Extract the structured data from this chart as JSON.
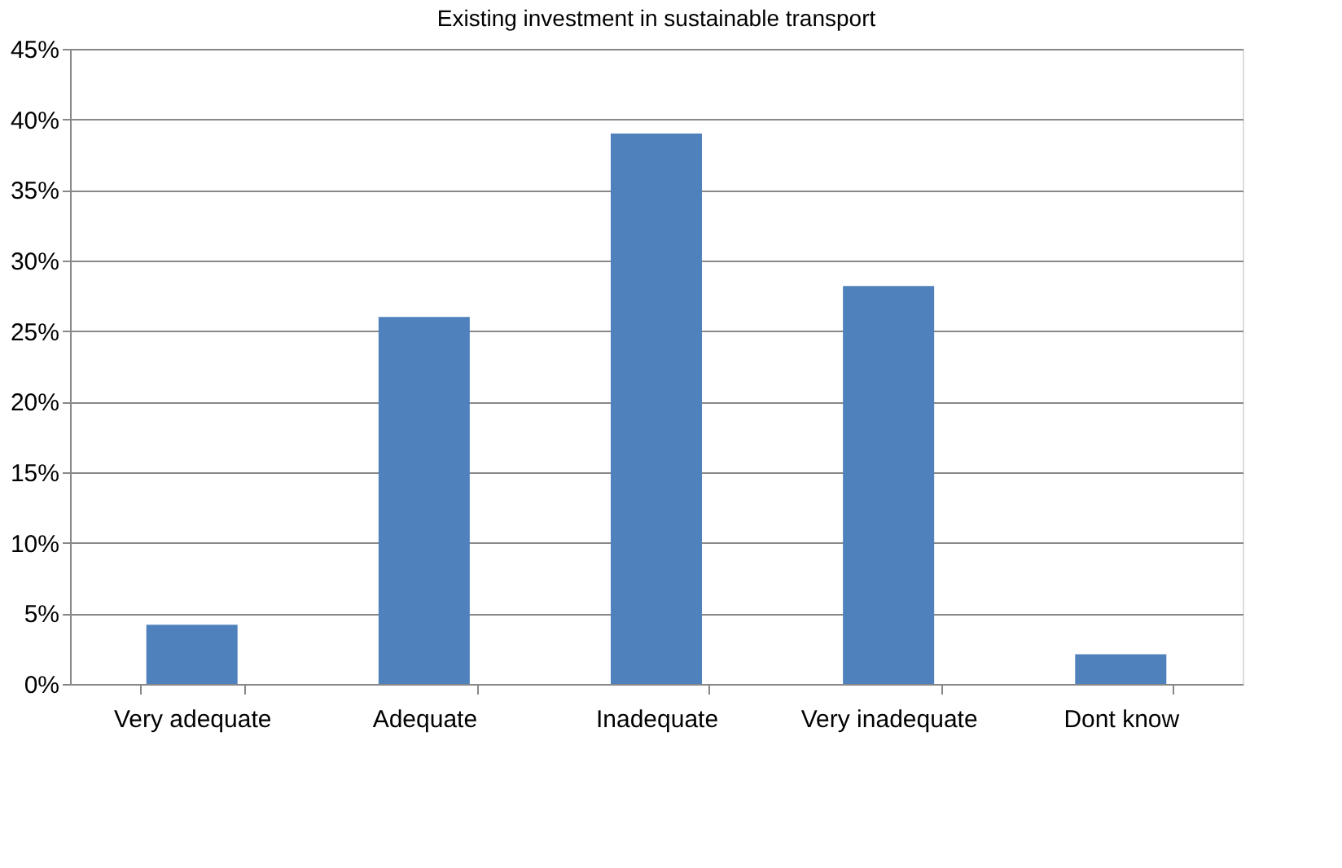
{
  "chart_data": {
    "type": "bar",
    "title": "Existing investment in sustainable transport",
    "categories": [
      "Very adequate",
      "Adequate",
      "Inadequate",
      "Very inadequate",
      "Dont know"
    ],
    "values": [
      4.2,
      26.0,
      39.0,
      28.2,
      2.1
    ],
    "color": "#4f81bd",
    "ylim": [
      0,
      45
    ],
    "yticks": [
      {
        "value": 0,
        "label": "0%"
      },
      {
        "value": 5,
        "label": "5%"
      },
      {
        "value": 10,
        "label": "10%"
      },
      {
        "value": 15,
        "label": "15%"
      },
      {
        "value": 20,
        "label": "20%"
      },
      {
        "value": 25,
        "label": "25%"
      },
      {
        "value": 30,
        "label": "30%"
      },
      {
        "value": 35,
        "label": "35%"
      },
      {
        "value": 40,
        "label": "40%"
      },
      {
        "value": 45,
        "label": "45%"
      }
    ],
    "grid": "y"
  }
}
